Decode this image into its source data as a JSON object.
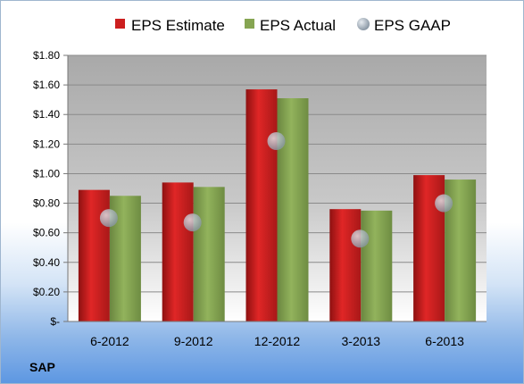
{
  "ticker": "SAP",
  "chart_data": {
    "type": "bar",
    "categories": [
      "6-2012",
      "9-2012",
      "12-2012",
      "3-2013",
      "6-2013"
    ],
    "series": [
      {
        "name": "EPS Estimate",
        "type": "bar",
        "color": "#cc1f1f",
        "values": [
          0.89,
          0.94,
          1.57,
          0.76,
          0.99
        ]
      },
      {
        "name": "EPS Actual",
        "type": "bar",
        "color": "#86a552",
        "values": [
          0.85,
          0.91,
          1.51,
          0.75,
          0.96
        ]
      },
      {
        "name": "EPS GAAP",
        "type": "scatter",
        "color": "#a8b4c0",
        "values": [
          0.7,
          0.67,
          1.22,
          0.56,
          0.8
        ]
      }
    ],
    "ylim": [
      0,
      1.8
    ],
    "yticks": [
      {
        "value": 1.8,
        "label": "$1.80"
      },
      {
        "value": 1.6,
        "label": "$1.60"
      },
      {
        "value": 1.4,
        "label": "$1.40"
      },
      {
        "value": 1.2,
        "label": "$1.20"
      },
      {
        "value": 1.0,
        "label": "$1.00"
      },
      {
        "value": 0.8,
        "label": "$0.80"
      },
      {
        "value": 0.6,
        "label": "$0.60"
      },
      {
        "value": 0.4,
        "label": "$0.40"
      },
      {
        "value": 0.2,
        "label": "$0.20"
      },
      {
        "value": 0.0,
        "label": "$-"
      }
    ],
    "grid": true,
    "legend": "top"
  }
}
